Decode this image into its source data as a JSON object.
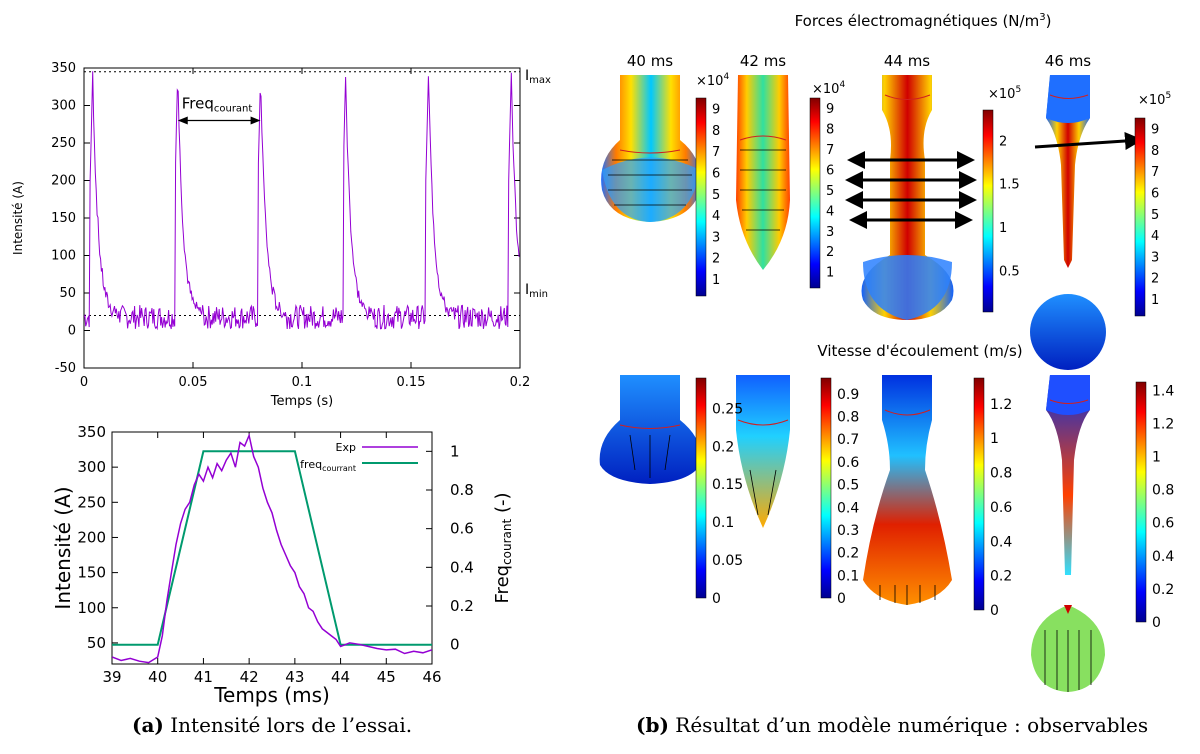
{
  "chart_data": [
    {
      "type": "line",
      "xlabel": "Temps (s)",
      "ylabel": "Intensité (A)",
      "xlim": [
        0,
        0.2
      ],
      "ylim": [
        -50,
        350
      ],
      "xticks": [
        "0",
        "0.05",
        "0.1",
        "0.15",
        "0.2"
      ],
      "yticks": [
        "-50",
        "0",
        "50",
        "100",
        "150",
        "200",
        "250",
        "300",
        "350"
      ],
      "grid": false,
      "reference_lines": [
        {
          "label_main": "I",
          "label_sub": "max",
          "y": 345
        },
        {
          "label_main": "I",
          "label_sub": "min",
          "y": 20
        }
      ],
      "annotation": {
        "main": "Freq",
        "sub": "courant",
        "x_start": 0.043,
        "x_end": 0.081,
        "y": 280
      },
      "series": [
        {
          "color": "#9400d3",
          "peak_times": [
            0.004,
            0.043,
            0.081,
            0.12,
            0.158,
            0.196
          ],
          "peak_values": [
            340,
            345,
            340,
            338,
            343,
            342
          ],
          "baseline": 18
        }
      ]
    },
    {
      "type": "line",
      "xlabel": "Temps (ms)",
      "ylabel": "Intensité (A)",
      "y2label_main": "Freq",
      "y2label_sub": "courant",
      "y2label_tail": " (-)",
      "xlim": [
        39,
        46
      ],
      "ylim": [
        20,
        350
      ],
      "y2lim": [
        -0.1,
        1.1
      ],
      "xticks": [
        "39",
        "40",
        "41",
        "42",
        "43",
        "44",
        "45",
        "46"
      ],
      "yticks": [
        "50",
        "100",
        "150",
        "200",
        "250",
        "300",
        "350"
      ],
      "y2ticks": [
        "0",
        "0.2",
        "0.4",
        "0.6",
        "0.8",
        "1"
      ],
      "legend_position": "top-right",
      "series": [
        {
          "name": "Exp",
          "color": "#9400d3",
          "x": [
            39,
            39.2,
            39.4,
            39.6,
            39.8,
            40,
            40.1,
            40.2,
            40.3,
            40.4,
            40.5,
            40.6,
            40.7,
            40.8,
            40.9,
            41,
            41.1,
            41.2,
            41.3,
            41.4,
            41.5,
            41.6,
            41.7,
            41.8,
            41.9,
            42,
            42.1,
            42.2,
            42.3,
            42.4,
            42.5,
            42.6,
            42.7,
            42.8,
            42.9,
            43,
            43.1,
            43.2,
            43.3,
            43.4,
            43.5,
            43.6,
            43.7,
            43.8,
            43.9,
            44,
            44.2,
            44.4,
            44.6,
            44.8,
            45,
            45.2,
            45.4,
            45.6,
            45.8,
            46
          ],
          "y": [
            30,
            25,
            28,
            24,
            22,
            30,
            60,
            110,
            150,
            190,
            220,
            240,
            250,
            275,
            290,
            280,
            300,
            285,
            305,
            295,
            310,
            320,
            300,
            335,
            330,
            345,
            315,
            300,
            270,
            250,
            235,
            210,
            190,
            175,
            160,
            150,
            130,
            120,
            100,
            95,
            80,
            70,
            65,
            60,
            55,
            45,
            50,
            48,
            45,
            42,
            40,
            41,
            35,
            38,
            36,
            40
          ]
        },
        {
          "name_main": "freq",
          "name_sub": "courrant",
          "color": "#009a6e",
          "x": [
            39,
            40,
            41,
            43,
            44,
            46
          ],
          "y": [
            0,
            0,
            1,
            1,
            0,
            0
          ]
        }
      ]
    }
  ],
  "panel_b": {
    "forces_title": "Forces électromagnétiques (N/m",
    "forces_title_sup": "3",
    "forces_title_close": ")",
    "vitesse_title": "Vitesse d'écoulement (m/s)",
    "times": [
      "40 ms",
      "42 ms",
      "44 ms",
      "46 ms"
    ],
    "force_colorbars": [
      {
        "multiplier": "×10",
        "exp": "4",
        "ticks": [
          "9",
          "8",
          "7",
          "6",
          "5",
          "4",
          "3",
          "2",
          "1"
        ],
        "vmin": 0.2,
        "vmax": 9.5
      },
      {
        "multiplier": "×10",
        "exp": "4",
        "ticks": [
          "9",
          "8",
          "7",
          "6",
          "5",
          "4",
          "3",
          "2",
          "1"
        ],
        "vmin": 0.2,
        "vmax": 9.5
      },
      {
        "multiplier": "×10",
        "exp": "5",
        "ticks": [
          "2",
          "1.5",
          "1",
          "0.5"
        ],
        "vmin": 0.02,
        "vmax": 2.35
      },
      {
        "multiplier": "×10",
        "exp": "5",
        "ticks": [
          "9",
          "8",
          "7",
          "6",
          "5",
          "4",
          "3",
          "2",
          "1"
        ],
        "vmin": 0.2,
        "vmax": 9.5
      }
    ],
    "speed_colorbars": [
      {
        "ticks": [
          "0.25",
          "0.2",
          "0.15",
          "0.1",
          "0.05",
          "0"
        ],
        "vmin": 0,
        "vmax": 0.29
      },
      {
        "ticks": [
          "0.9",
          "0.8",
          "0.7",
          "0.6",
          "0.5",
          "0.4",
          "0.3",
          "0.2",
          "0.1",
          "0"
        ],
        "vmin": 0,
        "vmax": 0.97
      },
      {
        "ticks": [
          "1.2",
          "1",
          "0.8",
          "0.6",
          "0.4",
          "0.2",
          "0"
        ],
        "vmin": 0,
        "vmax": 1.35
      },
      {
        "ticks": [
          "1.4",
          "1.2",
          "1",
          "0.8",
          "0.6",
          "0.4",
          "0.2",
          "0"
        ],
        "vmin": 0,
        "vmax": 1.45
      }
    ]
  },
  "captions": {
    "a_label": "(a)",
    "a_text": " Intensité lors de l’essai.",
    "b_label": "(b)",
    "b_text": " Résultat d’un modèle numérique : observables"
  },
  "colors": {
    "purple": "#9400d3",
    "green": "#009a6e",
    "jet_low": "#00008f",
    "jet_high": "#800000"
  }
}
